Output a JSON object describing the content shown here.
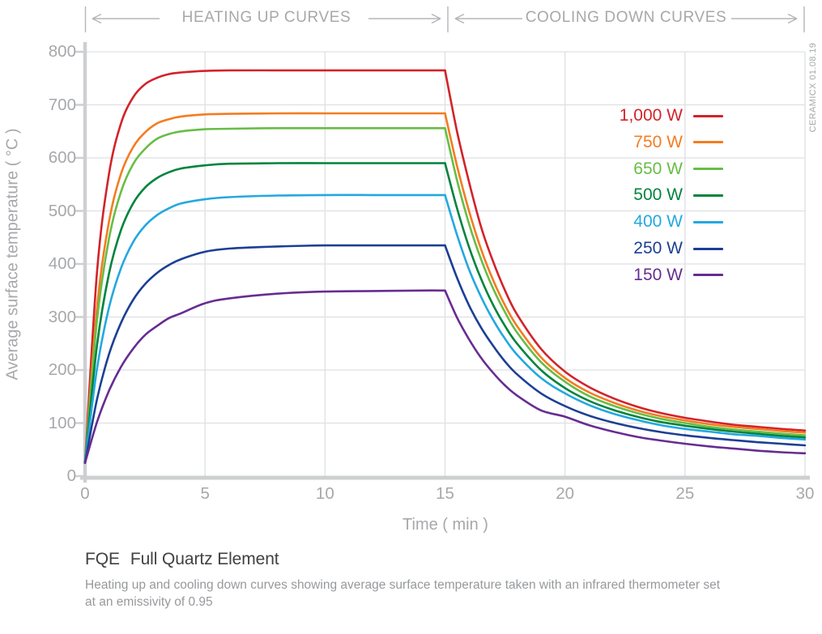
{
  "header": {
    "heating_label": "HEATING UP CURVES",
    "cooling_label": "COOLING DOWN CURVES"
  },
  "watermark": "CERAMICX 01.08.19",
  "footer": {
    "code": "FQE",
    "name": "Full Quartz Element",
    "description_line1": "Heating up and cooling down curves showing average surface temperature taken with an infrared thermometer set",
    "description_line2": "at an emissivity of 0.95"
  },
  "chart_data": {
    "type": "line",
    "title": "FQE Full Quartz Element",
    "xlabel": "Time ( min )",
    "ylabel": "Average surface temperature ( °C )",
    "xlim": [
      0,
      30
    ],
    "ylim": [
      0,
      800
    ],
    "x_ticks": [
      0,
      5,
      10,
      15,
      20,
      25,
      30
    ],
    "y_ticks": [
      0,
      100,
      200,
      300,
      400,
      500,
      600,
      700,
      800
    ],
    "grid": true,
    "legend_position": "right-inside",
    "heating_phase_minutes": [
      0,
      15
    ],
    "cooling_phase_minutes": [
      15,
      30
    ],
    "palette": {
      "grid": "#dfe0e2",
      "axis": "#cdcfd1",
      "header_marks": "#b3b5b8",
      "tick_text": "#a6a8ab",
      "title_text": "#414042",
      "description_text": "#97999c"
    },
    "x": [
      0,
      0.5,
      1,
      1.5,
      2,
      2.5,
      3,
      3.5,
      4,
      5,
      6,
      8,
      10,
      12,
      14,
      15,
      15.5,
      16,
      16.5,
      17,
      17.5,
      18,
      19,
      20,
      21,
      22,
      23,
      24,
      25,
      26,
      27,
      28,
      29,
      30
    ],
    "series": [
      {
        "name": "1,000 W",
        "color": "#d2232a",
        "values": [
          25,
          385,
          570,
          665,
          714,
          739,
          751,
          758,
          761,
          764,
          765,
          765,
          765,
          765,
          765,
          765,
          650,
          555,
          470,
          405,
          350,
          305,
          240,
          197,
          168,
          147,
          131,
          119,
          110,
          103,
          97,
          93,
          89,
          86
        ]
      },
      {
        "name": "750 W",
        "color": "#f47c20",
        "values": [
          25,
          318,
          480,
          570,
          620,
          648,
          665,
          673,
          678,
          682,
          683,
          684,
          684,
          684,
          684,
          684,
          585,
          500,
          428,
          370,
          322,
          283,
          224,
          185,
          158,
          139,
          124,
          113,
          105,
          98,
          93,
          89,
          85,
          82
        ]
      },
      {
        "name": "650 W",
        "color": "#68bd45",
        "values": [
          25,
          294,
          448,
          536,
          588,
          617,
          636,
          645,
          650,
          654,
          655,
          656,
          656,
          656,
          656,
          656,
          558,
          476,
          409,
          354,
          309,
          271,
          215,
          178,
          151,
          133,
          119,
          108,
          100,
          93,
          88,
          84,
          80,
          77
        ]
      },
      {
        "name": "500 W",
        "color": "#00843d",
        "values": [
          25,
          247,
          382,
          464,
          514,
          544,
          562,
          573,
          580,
          586,
          589,
          590,
          590,
          590,
          590,
          590,
          505,
          432,
          372,
          323,
          283,
          250,
          200,
          166,
          142,
          125,
          112,
          102,
          95,
          89,
          84,
          80,
          76,
          73
        ]
      },
      {
        "name": "400 W",
        "color": "#23a8e0",
        "values": [
          25,
          203,
          318,
          392,
          441,
          472,
          492,
          505,
          514,
          522,
          526,
          529,
          530,
          530,
          530,
          530,
          455,
          390,
          338,
          295,
          259,
          229,
          185,
          156,
          134,
          118,
          106,
          96,
          89,
          84,
          79,
          76,
          72,
          69
        ]
      },
      {
        "name": "250 W",
        "color": "#1c3f94",
        "values": [
          25,
          145,
          230,
          289,
          332,
          362,
          383,
          398,
          409,
          423,
          429,
          433,
          435,
          435,
          435,
          435,
          374,
          322,
          280,
          246,
          216,
          192,
          156,
          132,
          114,
          101,
          91,
          83,
          77,
          72,
          68,
          64,
          61,
          58
        ]
      },
      {
        "name": "150 W",
        "color": "#662d91",
        "values": [
          25,
          102,
          161,
          206,
          240,
          266,
          283,
          298,
          307,
          326,
          335,
          344,
          348,
          349,
          350,
          350,
          299,
          258,
          223,
          195,
          171,
          152,
          124,
          112,
          96,
          84,
          74,
          67,
          61,
          56,
          52,
          48,
          45,
          43
        ]
      }
    ]
  }
}
